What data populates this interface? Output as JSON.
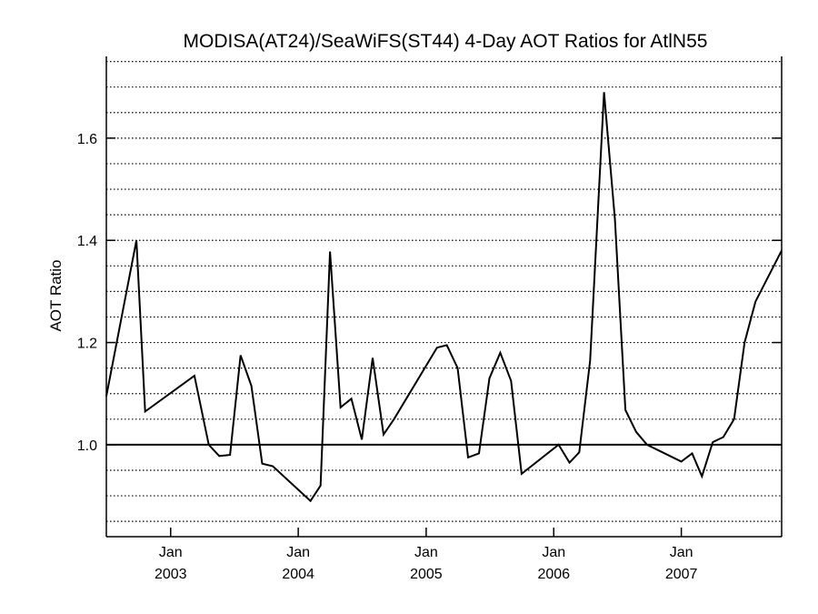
{
  "chart_data": {
    "type": "line",
    "title": "MODISA(AT24)/SeaWiFS(ST44) 4-Day AOT Ratios for AtlN55",
    "xlabel": "",
    "ylabel": "AOT Ratio",
    "x_ticks": [
      {
        "date": "2003-01-01",
        "month": "Jan",
        "year": "2003"
      },
      {
        "date": "2004-01-01",
        "month": "Jan",
        "year": "2004"
      },
      {
        "date": "2005-01-01",
        "month": "Jan",
        "year": "2005"
      },
      {
        "date": "2006-01-01",
        "month": "Jan",
        "year": "2006"
      },
      {
        "date": "2007-01-01",
        "month": "Jan",
        "year": "2007"
      }
    ],
    "xlim": [
      "2002-07-01",
      "2007-10-15"
    ],
    "ylim": [
      0.82,
      1.76
    ],
    "y_ticks": [
      1.0,
      1.2,
      1.4,
      1.6
    ],
    "y_tick_labels": [
      "1.0",
      "1.2",
      "1.4",
      "1.6"
    ],
    "grid": {
      "y": true,
      "y_step": 0.05,
      "style": "dotted"
    },
    "reference_line": 1.0,
    "series": [
      {
        "color": "#000000",
        "points": [
          [
            "2002-07-01",
            1.095
          ],
          [
            "2002-09-25",
            1.4
          ],
          [
            "2002-10-20",
            1.065
          ],
          [
            "2003-03-10",
            1.135
          ],
          [
            "2003-04-20",
            1.0
          ],
          [
            "2003-05-20",
            0.978
          ],
          [
            "2003-06-20",
            0.98
          ],
          [
            "2003-07-20",
            1.175
          ],
          [
            "2003-08-20",
            1.115
          ],
          [
            "2003-09-20",
            0.963
          ],
          [
            "2003-10-20",
            0.958
          ],
          [
            "2004-02-05",
            0.89
          ],
          [
            "2004-03-05",
            0.92
          ],
          [
            "2004-04-01",
            1.378
          ],
          [
            "2004-05-01",
            1.073
          ],
          [
            "2004-06-01",
            1.09
          ],
          [
            "2004-07-01",
            1.01
          ],
          [
            "2004-08-01",
            1.17
          ],
          [
            "2004-09-01",
            1.02
          ],
          [
            "2004-10-01",
            1.05
          ],
          [
            "2005-02-01",
            1.19
          ],
          [
            "2005-03-01",
            1.195
          ],
          [
            "2005-04-01",
            1.15
          ],
          [
            "2005-05-01",
            0.975
          ],
          [
            "2005-06-01",
            0.983
          ],
          [
            "2005-07-01",
            1.13
          ],
          [
            "2005-08-01",
            1.18
          ],
          [
            "2005-09-01",
            1.125
          ],
          [
            "2005-10-01",
            0.943
          ],
          [
            "2006-01-15",
            1.0
          ],
          [
            "2006-02-15",
            0.965
          ],
          [
            "2006-03-15",
            0.985
          ],
          [
            "2006-04-15",
            1.165
          ],
          [
            "2006-05-25",
            1.69
          ],
          [
            "2006-06-25",
            1.44
          ],
          [
            "2006-07-25",
            1.068
          ],
          [
            "2006-08-25",
            1.025
          ],
          [
            "2006-09-25",
            1.0
          ],
          [
            "2007-01-01",
            0.967
          ],
          [
            "2007-02-01",
            0.983
          ],
          [
            "2007-03-01",
            0.938
          ],
          [
            "2007-04-01",
            1.005
          ],
          [
            "2007-05-01",
            1.015
          ],
          [
            "2007-06-01",
            1.05
          ],
          [
            "2007-07-01",
            1.2
          ],
          [
            "2007-08-01",
            1.28
          ],
          [
            "2007-10-15",
            1.38
          ]
        ]
      }
    ]
  }
}
